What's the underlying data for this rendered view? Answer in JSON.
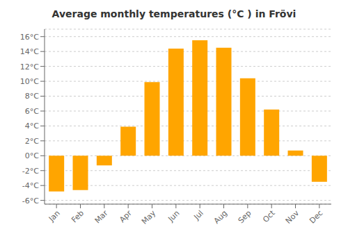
{
  "chart_data": {
    "type": "bar",
    "title": "Average monthly temperatures (°C ) in Frövi",
    "categories": [
      "Jan",
      "Feb",
      "Mar",
      "Apr",
      "May",
      "Jun",
      "Jul",
      "Aug",
      "Sep",
      "Oct",
      "Nov",
      "Dec"
    ],
    "values": [
      -4.8,
      -4.6,
      -1.3,
      3.9,
      9.9,
      14.4,
      15.5,
      14.5,
      10.4,
      6.2,
      0.7,
      -3.5
    ],
    "color": "#FFA500",
    "ylim": [
      -6.5,
      17
    ],
    "yticks": [
      {
        "value": -6,
        "label": "-6°C"
      },
      {
        "value": -4,
        "label": "-4°C"
      },
      {
        "value": -2,
        "label": "-2°C"
      },
      {
        "value": 0,
        "label": "0°C"
      },
      {
        "value": 2,
        "label": "2°C"
      },
      {
        "value": 4,
        "label": "4°C"
      },
      {
        "value": 6,
        "label": "6°C"
      },
      {
        "value": 8,
        "label": "8°C"
      },
      {
        "value": 10,
        "label": "10°C"
      },
      {
        "value": 12,
        "label": "12°C"
      },
      {
        "value": 14,
        "label": "14°C"
      },
      {
        "value": 16,
        "label": "16°C"
      }
    ],
    "grid": true
  }
}
